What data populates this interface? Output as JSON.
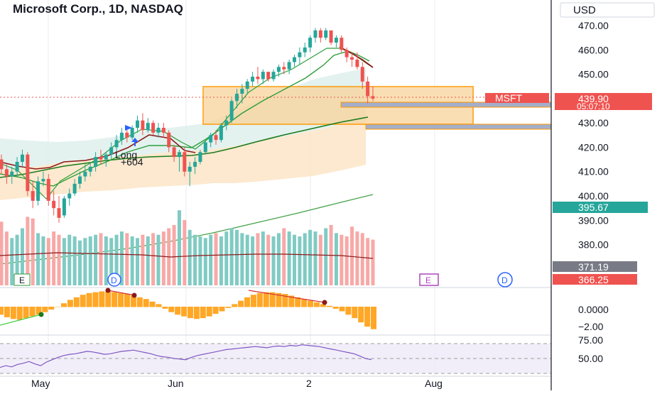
{
  "header": {
    "title": "Microsoft Corp., 1D, NASDAQ",
    "currency": "USD"
  },
  "colors": {
    "up": "#26a69a",
    "down": "#ef5350",
    "ema_fast": "#8b1a1a",
    "ema_mid": "#2e9e3a",
    "ema_slow": "#1b7a1b",
    "sma_200": "#43a047",
    "zone_fill": "#f9d49a",
    "zone_border": "#ff9800",
    "msft_tag": "#ef5350",
    "price_tag": "#ef5350",
    "sma_tag": "#26a69a",
    "vol_ma_tag": "#787b86",
    "rsi_line": "#7e57c2",
    "macd_hist": "#ffa726",
    "earnings": "#ab47bc",
    "dividend": "#2962ff"
  },
  "price_axis": {
    "ticks": [
      "470.00",
      "460.00",
      "450.00",
      "430.00",
      "420.00",
      "410.00",
      "400.00",
      "390.00",
      "380.00"
    ]
  },
  "tags": {
    "symbol": "MSFT",
    "last_price": "439.90",
    "countdown": "05:07:10",
    "sma_200": "395.67",
    "vol_ma": "371.19",
    "vol_ma2": "366.25"
  },
  "trade_label": {
    "side": "Long",
    "pnl": "+604"
  },
  "event_markers": [
    {
      "label": "E",
      "type": "earnings"
    },
    {
      "label": "D",
      "type": "dividend"
    },
    {
      "label": "E",
      "type": "earnings"
    },
    {
      "label": "D",
      "type": "dividend"
    }
  ],
  "macd_axis": {
    "ticks": [
      "0.0000",
      "−2.00"
    ]
  },
  "rsi_axis": {
    "ticks": [
      "75.00",
      "50.00"
    ]
  },
  "time_axis": {
    "ticks": [
      "May",
      "Jun",
      "2",
      "Aug"
    ]
  },
  "chart_data": {
    "type": "candlestick",
    "title": "Microsoft Corp., 1D, NASDAQ",
    "ylim": [
      368,
      475
    ],
    "candles": [
      [
        415,
        417,
        409,
        411
      ],
      [
        411,
        413,
        405,
        408
      ],
      [
        408,
        412,
        405,
        410
      ],
      [
        410,
        416,
        408,
        414
      ],
      [
        414,
        419,
        412,
        417
      ],
      [
        417,
        418,
        400,
        402
      ],
      [
        402,
        406,
        395,
        398
      ],
      [
        398,
        408,
        396,
        406
      ],
      [
        406,
        410,
        404,
        407
      ],
      [
        407,
        409,
        396,
        398
      ],
      [
        398,
        402,
        392,
        395
      ],
      [
        395,
        400,
        389,
        391
      ],
      [
        392,
        400,
        391,
        399
      ],
      [
        399,
        403,
        396,
        401
      ],
      [
        401,
        407,
        400,
        405
      ],
      [
        405,
        410,
        403,
        408
      ],
      [
        408,
        413,
        406,
        410
      ],
      [
        410,
        414,
        408,
        412
      ],
      [
        412,
        418,
        410,
        416
      ],
      [
        416,
        419,
        413,
        415
      ],
      [
        415,
        418,
        412,
        417
      ],
      [
        417,
        422,
        415,
        420
      ],
      [
        420,
        425,
        418,
        423
      ],
      [
        423,
        428,
        421,
        426
      ],
      [
        426,
        428,
        422,
        424
      ],
      [
        424,
        429,
        423,
        428
      ],
      [
        428,
        433,
        426,
        431
      ],
      [
        431,
        434,
        425,
        427
      ],
      [
        427,
        432,
        426,
        430
      ],
      [
        430,
        431,
        425,
        426
      ],
      [
        426,
        430,
        424,
        428
      ],
      [
        428,
        430,
        424,
        426
      ],
      [
        426,
        427,
        418,
        420
      ],
      [
        420,
        421,
        414,
        416
      ],
      [
        416,
        419,
        410,
        418
      ],
      [
        418,
        420,
        408,
        410
      ],
      [
        410,
        414,
        404,
        412
      ],
      [
        412,
        416,
        409,
        414
      ],
      [
        414,
        419,
        413,
        418
      ],
      [
        418,
        423,
        417,
        422
      ],
      [
        422,
        426,
        420,
        425
      ],
      [
        425,
        427,
        421,
        423
      ],
      [
        423,
        430,
        422,
        429
      ],
      [
        429,
        433,
        427,
        431
      ],
      [
        431,
        440,
        430,
        439
      ],
      [
        439,
        444,
        436,
        442
      ],
      [
        442,
        446,
        438,
        444
      ],
      [
        444,
        448,
        442,
        447
      ],
      [
        447,
        451,
        445,
        449
      ],
      [
        449,
        453,
        446,
        448
      ],
      [
        448,
        452,
        446,
        451
      ],
      [
        451,
        451,
        447,
        448
      ],
      [
        448,
        452,
        447,
        451
      ],
      [
        451,
        454,
        449,
        453
      ],
      [
        453,
        455,
        450,
        452
      ],
      [
        452,
        456,
        450,
        455
      ],
      [
        455,
        458,
        453,
        457
      ],
      [
        457,
        461,
        454,
        459
      ],
      [
        459,
        463,
        457,
        461
      ],
      [
        461,
        466,
        459,
        465
      ],
      [
        465,
        469,
        463,
        468
      ],
      [
        468,
        469,
        463,
        465
      ],
      [
        465,
        469,
        464,
        468
      ],
      [
        468,
        468,
        462,
        463
      ],
      [
        463,
        466,
        461,
        465
      ],
      [
        465,
        466,
        459,
        460
      ],
      [
        460,
        461,
        455,
        457
      ],
      [
        457,
        459,
        453,
        456
      ],
      [
        456,
        459,
        452,
        453
      ],
      [
        453,
        455,
        444,
        447
      ],
      [
        447,
        449,
        438,
        441
      ],
      [
        441,
        445,
        439,
        440
      ]
    ],
    "volume": [
      78,
      66,
      58,
      62,
      70,
      84,
      82,
      64,
      60,
      58,
      66,
      62,
      58,
      62,
      60,
      55,
      58,
      60,
      62,
      64,
      60,
      58,
      62,
      66,
      64,
      60,
      58,
      62,
      60,
      64,
      62,
      66,
      70,
      74,
      92,
      80,
      68,
      62,
      60,
      58,
      62,
      64,
      60,
      66,
      70,
      68,
      64,
      62,
      60,
      64,
      66,
      62,
      60,
      64,
      70,
      66,
      62,
      60,
      64,
      68,
      66,
      62,
      70,
      74,
      64,
      62,
      60,
      72,
      66,
      64,
      58,
      56
    ],
    "macd_hist": [
      -0.9,
      -1.2,
      -1.4,
      -1.5,
      -1.3,
      -1.1,
      -0.9,
      -0.6,
      -0.3,
      0.0,
      0.4,
      0.8,
      1.1,
      1.4,
      1.6,
      1.7,
      1.8,
      1.8,
      1.7,
      1.6,
      1.5,
      1.3,
      1.1,
      0.9,
      0.6,
      0.3,
      -0.2,
      -0.6,
      -0.9,
      -1.1,
      -1.3,
      -1.4,
      -1.3,
      -1.1,
      -0.8,
      -0.5,
      -0.1,
      0.3,
      0.7,
      1.1,
      1.4,
      1.6,
      1.7,
      1.7,
      1.6,
      1.5,
      1.3,
      1.1,
      0.9,
      0.7,
      0.5,
      0.3,
      0.1,
      -0.2,
      -0.5,
      -0.9,
      -1.3,
      -1.8,
      -2.3,
      -2.6
    ],
    "rsi": [
      35,
      38,
      36,
      40,
      42,
      45,
      41,
      38,
      44,
      48,
      52,
      55,
      57,
      58,
      60,
      62,
      61,
      59,
      57,
      58,
      60,
      62,
      63,
      64,
      62,
      60,
      58,
      55,
      53,
      52,
      50,
      49,
      48,
      52,
      55,
      57,
      59,
      61,
      63,
      65,
      66,
      67,
      68,
      69,
      70,
      69,
      68,
      70,
      71,
      70,
      72,
      71,
      73,
      72,
      71,
      70,
      68,
      66,
      64,
      62,
      60,
      58,
      54,
      50,
      48
    ]
  }
}
